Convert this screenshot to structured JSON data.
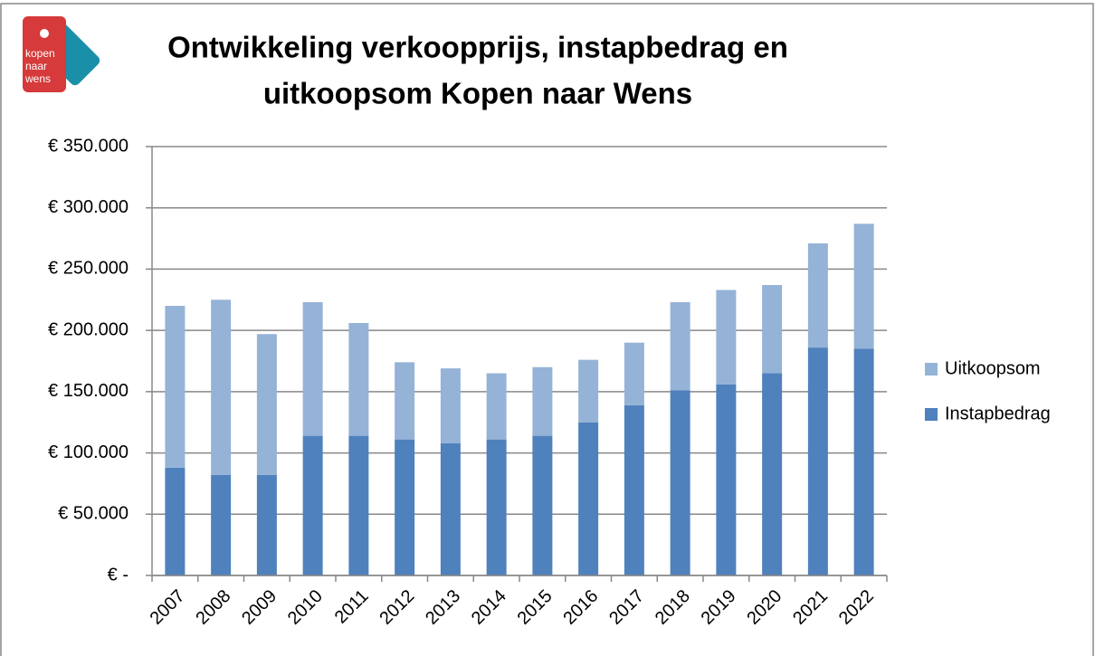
{
  "logo": {
    "lines": [
      "kopen",
      "naar",
      "wens"
    ]
  },
  "chart_data": {
    "type": "stacked_bar",
    "title": [
      "Ontwikkeling verkoopprijs, instapbedrag en",
      "uitkoopsom Kopen naar Wens"
    ],
    "categories": [
      "2007",
      "2008",
      "2009",
      "2010",
      "2011",
      "2012",
      "2013",
      "2014",
      "2015",
      "2016",
      "2017",
      "2018",
      "2019",
      "2020",
      "2021",
      "2022"
    ],
    "series": [
      {
        "name": "Instapbedrag",
        "color": "#4f81bd",
        "values": [
          88000,
          82000,
          82000,
          114000,
          114000,
          111000,
          108000,
          111000,
          114000,
          125000,
          139000,
          151000,
          156000,
          165000,
          186000,
          185000
        ]
      },
      {
        "name": "Uitkoopsom",
        "color": "#95b3d7",
        "values": [
          132000,
          143000,
          115000,
          109000,
          92000,
          63000,
          61000,
          54000,
          56000,
          51000,
          51000,
          72000,
          77000,
          72000,
          85000,
          102000
        ]
      }
    ],
    "ylim": [
      0,
      350000
    ],
    "yticks": [
      {
        "value": 0,
        "label": "€ -"
      },
      {
        "value": 50000,
        "label": "€ 50.000"
      },
      {
        "value": 100000,
        "label": "€ 100.000"
      },
      {
        "value": 150000,
        "label": "€ 150.000"
      },
      {
        "value": 200000,
        "label": "€ 200.000"
      },
      {
        "value": 250000,
        "label": "€ 250.000"
      },
      {
        "value": 300000,
        "label": "€ 300.000"
      },
      {
        "value": 350000,
        "label": "€ 350.000"
      }
    ],
    "grid": true,
    "legend": "right"
  }
}
